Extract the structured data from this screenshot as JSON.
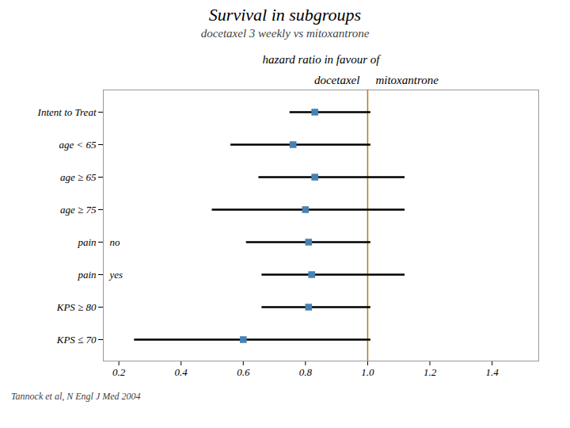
{
  "chart_data": {
    "type": "forest",
    "title": "Survival in subgroups",
    "subtitle": "docetaxel 3 weekly vs mitoxantrone",
    "xlabel": "hazard ratio in favour of",
    "annotations": [
      "docetaxel",
      "mitoxantrone"
    ],
    "caption": "Tannock et al, N Engl J Med 2004",
    "categories": [
      "Intent to Treat",
      "age < 65",
      "age ≥ 65",
      "age ≥ 75",
      "pain",
      "pain",
      "KPS ≥ 80",
      "KPS ≤ 70"
    ],
    "sublabels": [
      null,
      null,
      null,
      null,
      "no",
      "yes",
      null,
      null
    ],
    "values": [
      0.83,
      0.76,
      0.83,
      0.8,
      0.81,
      0.82,
      0.81,
      0.6
    ],
    "ci_low": [
      0.75,
      0.56,
      0.65,
      0.5,
      0.61,
      0.66,
      0.66,
      0.25
    ],
    "ci_high": [
      1.01,
      1.01,
      1.12,
      1.12,
      1.01,
      1.12,
      1.01,
      1.01
    ],
    "ref_line": 1.0,
    "xlim": [
      0.15,
      1.55
    ],
    "xticks": [
      0.2,
      0.4,
      0.6,
      0.8,
      {
        "value": 1.0,
        "label": "1.0"
      },
      1.2,
      1.4
    ],
    "grid": false
  }
}
